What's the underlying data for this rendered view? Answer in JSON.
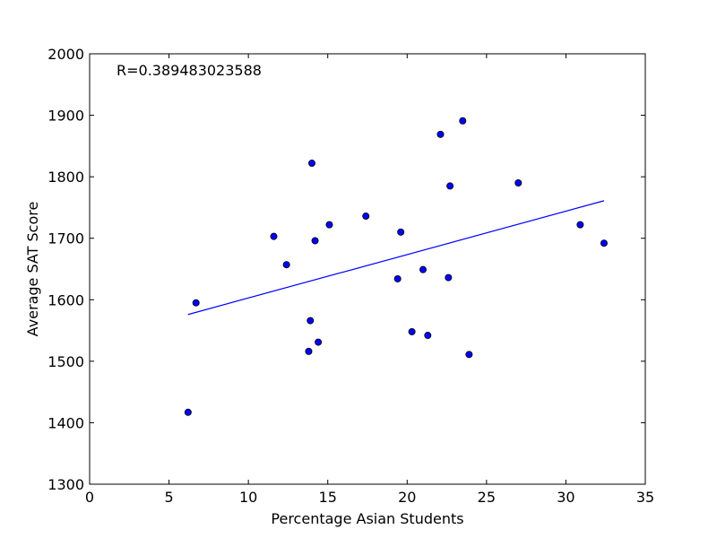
{
  "chart_data": {
    "type": "scatter",
    "xlabel": "Percentage Asian Students",
    "ylabel": "Average SAT Score",
    "xlim": [
      0,
      35
    ],
    "ylim": [
      1300,
      2000
    ],
    "xticks": [
      "0",
      "5",
      "10",
      "15",
      "20",
      "25",
      "30",
      "35"
    ],
    "yticks": [
      "1300",
      "1400",
      "1500",
      "1600",
      "1700",
      "1800",
      "1900",
      "2000"
    ],
    "annotation": "R=0.389483023588",
    "grid": false,
    "point_color": "#0000ff",
    "line_color": "#0000ff",
    "points": [
      {
        "x": 6.2,
        "y": 1417
      },
      {
        "x": 6.7,
        "y": 1595
      },
      {
        "x": 11.6,
        "y": 1703
      },
      {
        "x": 12.4,
        "y": 1657
      },
      {
        "x": 13.8,
        "y": 1516
      },
      {
        "x": 13.9,
        "y": 1566
      },
      {
        "x": 14.0,
        "y": 1822
      },
      {
        "x": 14.2,
        "y": 1696
      },
      {
        "x": 14.4,
        "y": 1531
      },
      {
        "x": 15.1,
        "y": 1722
      },
      {
        "x": 17.4,
        "y": 1736
      },
      {
        "x": 19.4,
        "y": 1634
      },
      {
        "x": 19.6,
        "y": 1710
      },
      {
        "x": 20.3,
        "y": 1548
      },
      {
        "x": 21.0,
        "y": 1649
      },
      {
        "x": 21.3,
        "y": 1542
      },
      {
        "x": 22.1,
        "y": 1869
      },
      {
        "x": 22.6,
        "y": 1636
      },
      {
        "x": 22.7,
        "y": 1785
      },
      {
        "x": 23.5,
        "y": 1891
      },
      {
        "x": 23.9,
        "y": 1511
      },
      {
        "x": 27.0,
        "y": 1790
      },
      {
        "x": 30.9,
        "y": 1722
      },
      {
        "x": 32.4,
        "y": 1692
      }
    ],
    "fit_line": {
      "x": [
        6.2,
        32.4
      ],
      "y": [
        1576,
        1761
      ]
    }
  }
}
